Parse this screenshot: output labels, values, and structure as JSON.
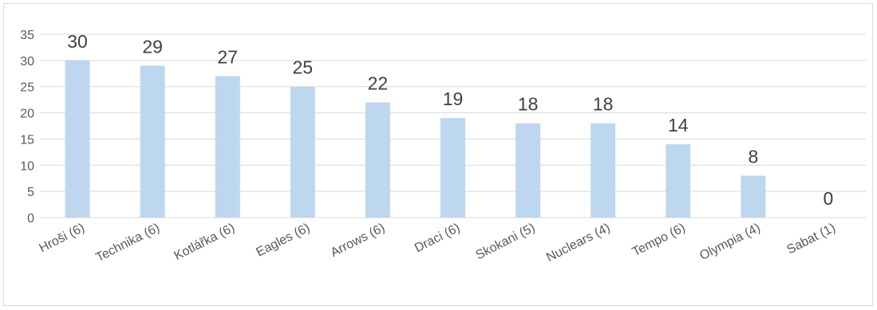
{
  "chart_data": {
    "type": "bar",
    "categories": [
      "Hroši (6)",
      "Technika (6)",
      "Kotlářka (6)",
      "Eagles (6)",
      "Arrows (6)",
      "Draci (6)",
      "Skokani (5)",
      "Nuclears (4)",
      "Tempo (6)",
      "Olympia (4)",
      "Sabat (1)"
    ],
    "values": [
      30,
      29,
      27,
      25,
      22,
      19,
      18,
      18,
      14,
      8,
      0
    ],
    "ylim": [
      0,
      35
    ],
    "yticks": [
      0,
      5,
      10,
      15,
      20,
      25,
      30,
      35
    ],
    "grid": true,
    "bar_color": "#bdd7ee",
    "grid_color": "#d9d9d9",
    "data_labels": true
  }
}
